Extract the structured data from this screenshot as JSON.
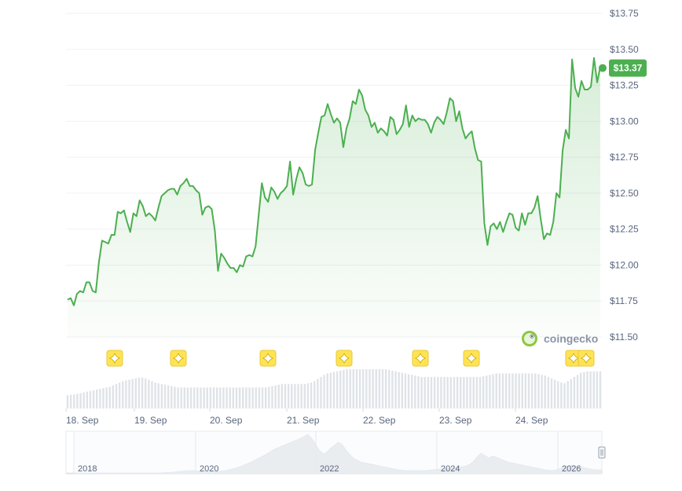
{
  "chart_data": {
    "type": "line",
    "currency_prefix": "$",
    "y_ticks": [
      "$13.75",
      "$13.50",
      "$13.25",
      "$13.00",
      "$12.75",
      "$12.50",
      "$12.25",
      "$12.00",
      "$11.75",
      "$11.50"
    ],
    "ylim": [
      11.5,
      13.75
    ],
    "x_ticks": [
      "18. Sep",
      "19. Sep",
      "20. Sep",
      "21. Sep",
      "22. Sep",
      "23. Sep",
      "24. Sep"
    ],
    "current_price_label": "$13.37",
    "current_price": 13.37,
    "series": [
      {
        "values": [
          11.76,
          11.77,
          11.72,
          11.8,
          11.82,
          11.81,
          11.88,
          11.88,
          11.82,
          11.81,
          12.02,
          12.17,
          12.16,
          12.15,
          12.21,
          12.21,
          12.37,
          12.36,
          12.38,
          12.3,
          12.23,
          12.36,
          12.34,
          12.45,
          12.41,
          12.34,
          12.36,
          12.34,
          12.31,
          12.4,
          12.48,
          12.5,
          12.52,
          12.53,
          12.53,
          12.49,
          12.55,
          12.57,
          12.6,
          12.55,
          12.55,
          12.52,
          12.5,
          12.35,
          12.4,
          12.41,
          12.39,
          12.24,
          11.96,
          12.08,
          12.05,
          12.01,
          11.98,
          11.98,
          11.95,
          12.0,
          11.99,
          12.06,
          12.07,
          12.06,
          12.13,
          12.35,
          12.57,
          12.47,
          12.44,
          12.54,
          12.51,
          12.46,
          12.5,
          12.52,
          12.55,
          12.72,
          12.49,
          12.6,
          12.68,
          12.64,
          12.56,
          12.55,
          12.56,
          12.8,
          12.92,
          13.03,
          13.04,
          13.12,
          13.05,
          12.99,
          13.02,
          12.99,
          12.82,
          12.95,
          13.02,
          13.14,
          13.12,
          13.22,
          13.18,
          13.08,
          13.04,
          12.96,
          12.99,
          12.92,
          12.95,
          12.93,
          12.9,
          13.03,
          13.01,
          12.91,
          12.94,
          12.98,
          13.11,
          12.96,
          13.04,
          13.0,
          13.02,
          13.01,
          13.01,
          12.98,
          12.92,
          12.99,
          13.03,
          13.01,
          12.98,
          13.06,
          13.16,
          13.14,
          13.0,
          13.07,
          12.95,
          12.88,
          12.91,
          12.93,
          12.81,
          12.73,
          12.72,
          12.29,
          12.14,
          12.27,
          12.29,
          12.25,
          12.3,
          12.23,
          12.3,
          12.36,
          12.35,
          12.26,
          12.24,
          12.36,
          12.28,
          12.36,
          12.36,
          12.4,
          12.48,
          12.32,
          12.18,
          12.22,
          12.21,
          12.3,
          12.5,
          12.47,
          12.8,
          12.94,
          12.88,
          13.43,
          13.23,
          13.17,
          13.28,
          13.22,
          13.22,
          13.24,
          13.44,
          13.27,
          13.38
        ]
      }
    ],
    "event_markers": [
      "star-icon",
      "star-icon",
      "star-icon",
      "star-icon",
      "star-icon",
      "star-icon",
      "star-icon",
      "star-icon"
    ],
    "volume_values": [
      0.38,
      0.39,
      0.4,
      0.42,
      0.44,
      0.46,
      0.48,
      0.5,
      0.52,
      0.54,
      0.56,
      0.58,
      0.6,
      0.62,
      0.66,
      0.7,
      0.74,
      0.78,
      0.8,
      0.82,
      0.84,
      0.86,
      0.88,
      0.88,
      0.86,
      0.82,
      0.78,
      0.74,
      0.72,
      0.7,
      0.68,
      0.66,
      0.64,
      0.62,
      0.6,
      0.6,
      0.6,
      0.6,
      0.6,
      0.6,
      0.6,
      0.6,
      0.6,
      0.6,
      0.6,
      0.6,
      0.6,
      0.6,
      0.6,
      0.6,
      0.6,
      0.6,
      0.6,
      0.6,
      0.6,
      0.6,
      0.6,
      0.6,
      0.6,
      0.6,
      0.6,
      0.6,
      0.62,
      0.64,
      0.66,
      0.68,
      0.7,
      0.7,
      0.7,
      0.7,
      0.7,
      0.7,
      0.7,
      0.7,
      0.72,
      0.74,
      0.78,
      0.84,
      0.9,
      0.96,
      1.0,
      1.02,
      1.04,
      1.06,
      1.08,
      1.1,
      1.12,
      1.12,
      1.12,
      1.12,
      1.12,
      1.12,
      1.12,
      1.12,
      1.12,
      1.12,
      1.12,
      1.12,
      1.12,
      1.1,
      1.08,
      1.06,
      1.04,
      1.02,
      1.0,
      0.98,
      0.96,
      0.94,
      0.92,
      0.9,
      0.9,
      0.9,
      0.9,
      0.9,
      0.9,
      0.9,
      0.9,
      0.9,
      0.9,
      0.9,
      0.9,
      0.9,
      0.9,
      0.9,
      0.9,
      0.9,
      0.9,
      0.9,
      0.92,
      0.94,
      0.96,
      0.98,
      1.0,
      1.0,
      1.0,
      1.0,
      1.0,
      1.0,
      1.0,
      1.0,
      1.0,
      1.0,
      1.0,
      1.0,
      1.0,
      0.98,
      0.96,
      0.94,
      0.9,
      0.86,
      0.82,
      0.78,
      0.74,
      0.72,
      0.78,
      0.84,
      0.9,
      0.96,
      1.02,
      1.04,
      1.06,
      1.06,
      1.06,
      1.06,
      1.06
    ],
    "navigator": {
      "year_ticks": [
        "2018",
        "2020",
        "2022",
        "2024",
        "2026"
      ],
      "values": [
        0.02,
        0.02,
        0.02,
        0.02,
        0.02,
        0.02,
        0.02,
        0.02,
        0.02,
        0.02,
        0.02,
        0.02,
        0.02,
        0.02,
        0.02,
        0.02,
        0.02,
        0.02,
        0.02,
        0.02,
        0.02,
        0.02,
        0.02,
        0.02,
        0.02,
        0.02,
        0.03,
        0.03,
        0.04,
        0.05,
        0.06,
        0.07,
        0.08,
        0.08,
        0.08,
        0.07,
        0.06,
        0.05,
        0.05,
        0.05,
        0.06,
        0.07,
        0.08,
        0.1,
        0.12,
        0.15,
        0.18,
        0.22,
        0.26,
        0.3,
        0.35,
        0.4,
        0.45,
        0.5,
        0.56,
        0.62,
        0.66,
        0.7,
        0.74,
        0.78,
        0.82,
        0.86,
        0.9,
        0.95,
        1.0,
        0.9,
        0.75,
        0.6,
        0.5,
        0.55,
        0.65,
        0.72,
        0.8,
        0.75,
        0.62,
        0.5,
        0.4,
        0.35,
        0.3,
        0.28,
        0.26,
        0.24,
        0.22,
        0.2,
        0.18,
        0.16,
        0.14,
        0.12,
        0.1,
        0.09,
        0.08,
        0.08,
        0.08,
        0.08,
        0.08,
        0.08,
        0.09,
        0.1,
        0.11,
        0.12,
        0.13,
        0.14,
        0.15,
        0.16,
        0.17,
        0.18,
        0.2,
        0.24,
        0.32,
        0.44,
        0.52,
        0.46,
        0.4,
        0.45,
        0.42,
        0.38,
        0.34,
        0.3,
        0.28,
        0.26,
        0.24,
        0.22,
        0.2,
        0.18,
        0.16,
        0.14,
        0.12,
        0.1,
        0.09,
        0.08,
        0.1,
        0.14,
        0.18,
        0.2,
        0.22,
        0.2,
        0.18,
        0.16,
        0.14,
        0.12,
        0.1,
        0.1,
        0.1
      ]
    }
  },
  "watermark": {
    "icon": "coingecko-logo",
    "text": "coingecko"
  },
  "colors": {
    "line": "#4caf50",
    "fill_top": "#4caf50",
    "badge": "#4caf50",
    "grid": "#eff2f5",
    "tick_text": "#58667e",
    "volume_bar": "#dfe3e8",
    "navigator_area": "#e5e8ec",
    "marker_bg": "#ffe352"
  }
}
